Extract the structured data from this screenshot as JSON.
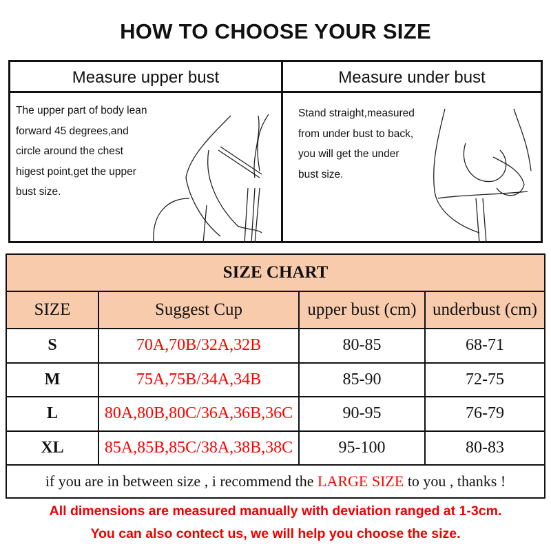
{
  "title": "HOW TO CHOOSE YOUR SIZE",
  "measure": {
    "upper": {
      "heading": "Measure upper bust",
      "lines": [
        "The upper part of body lean",
        "forward 45 degrees,and",
        "circle around the chest",
        "higest point,get the upper",
        "bust size."
      ]
    },
    "under": {
      "heading": "Measure under bust",
      "lines": [
        "Stand straight,measured",
        "from under bust to back,",
        "you will get the under",
        "bust size."
      ]
    }
  },
  "size_chart": {
    "title": "SIZE CHART",
    "headers": [
      "SIZE",
      "Suggest Cup",
      "upper bust (cm)",
      "underbust (cm)"
    ],
    "rows": [
      {
        "size": "S",
        "cup": "70A,70B/32A,32B",
        "upper": "80-85",
        "under": "68-71"
      },
      {
        "size": "M",
        "cup": "75A,75B/34A,34B",
        "upper": "85-90",
        "under": "72-75"
      },
      {
        "size": "L",
        "cup": "80A,80B,80C/36A,36B,36C",
        "upper": "90-95",
        "under": "76-79"
      },
      {
        "size": "XL",
        "cup": "85A,85B,85C/38A,38B,38C",
        "upper": "95-100",
        "under": "80-83"
      }
    ],
    "footer": {
      "before": "if you are in between size , i recommend the ",
      "highlight": "LARGE SIZE",
      "after": " to you , thanks !"
    }
  },
  "notes": [
    "All dimensions are measured manually with deviation ranged at 1-3cm.",
    "You can also contect us, we will help you choose the size."
  ],
  "colors": {
    "header_bg": "#f8cbad",
    "accent_red": "#ff0000"
  }
}
